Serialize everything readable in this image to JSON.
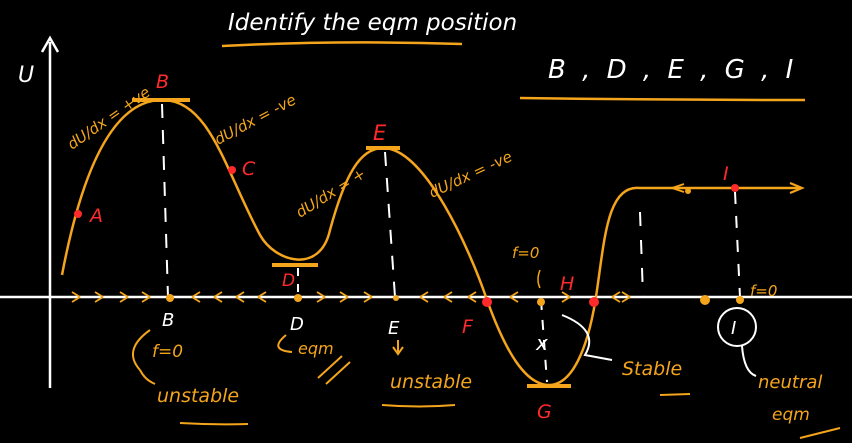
{
  "title": "Identify the eqm position",
  "answer": "B , D , E , G , I",
  "axes": {
    "y_label": "U",
    "x_label": "x"
  },
  "points": {
    "A": "A",
    "B": "B",
    "C": "C",
    "D": "D",
    "E": "E",
    "F": "F",
    "G": "G",
    "H": "H",
    "I": "I"
  },
  "slope_notes": {
    "ab": "dU/dx = +ve",
    "bc": "dU/dx = -ve",
    "de": "dU/dx = +",
    "ef": "dU/dx = -ve"
  },
  "axis_marks": {
    "B": "B",
    "D": "D",
    "E": "E",
    "F": "F",
    "x": "x",
    "I": "I"
  },
  "notes": {
    "b_force": "f=0",
    "b_type": "unstable",
    "d_note": "eqm",
    "e_type": "unstable",
    "g_force": "f=0",
    "g_type": "Stable",
    "i_force": "f=0",
    "i_type_1": "neutral",
    "i_type_2": "eqm"
  },
  "colors": {
    "curve": "#f4a51c",
    "labels": "#ff2a2a",
    "axes": "#ffffff"
  }
}
